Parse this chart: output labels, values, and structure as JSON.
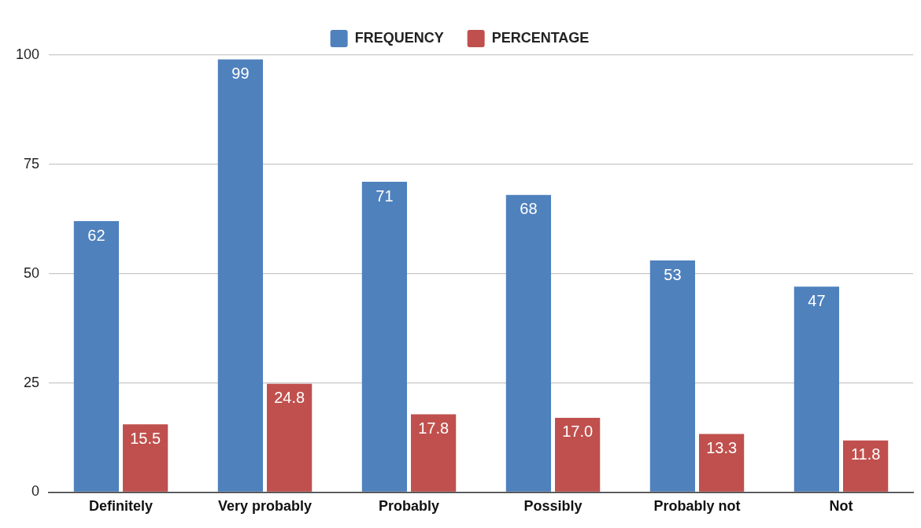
{
  "chart_data": {
    "type": "bar",
    "categories": [
      "Definitely",
      "Very probably",
      "Probably",
      "Possibly",
      "Probably not",
      "Not"
    ],
    "series": [
      {
        "name": "FREQUENCY",
        "color": "#4f81bd",
        "values": [
          62,
          99,
          71,
          68,
          53,
          47
        ],
        "value_labels": [
          "62",
          "99",
          "71",
          "68",
          "53",
          "47"
        ]
      },
      {
        "name": "PERCENTAGE",
        "color": "#c0504d",
        "values": [
          15.5,
          24.8,
          17.8,
          17,
          13.3,
          11.8
        ],
        "value_labels": [
          "15.5",
          "24.8",
          "17.8",
          "17.0",
          "13.3",
          "11.8"
        ]
      }
    ],
    "ylim": [
      0,
      100
    ],
    "yticks": [
      0,
      25,
      50,
      75,
      100
    ],
    "grid": "y",
    "legend": "top"
  }
}
